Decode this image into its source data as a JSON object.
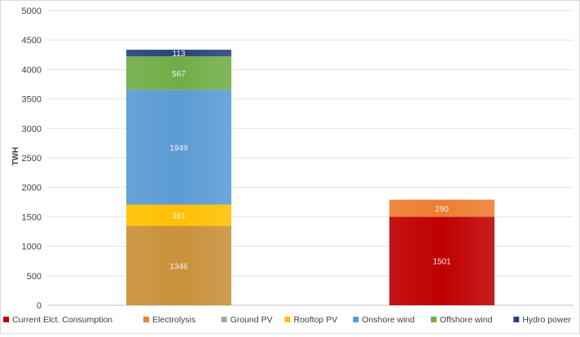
{
  "chart_data": {
    "type": "bar",
    "stacked": true,
    "ylabel": "TWH",
    "ylim": [
      0,
      5000
    ],
    "yticks": [
      0,
      500,
      1000,
      1500,
      2000,
      2500,
      3000,
      3500,
      4000,
      4500,
      5000
    ],
    "grid": true,
    "legend_position": "bottom",
    "categories": [
      "",
      ""
    ],
    "series": [
      {
        "name": "Current Elct. Consumption",
        "color": "#c00000",
        "values": [
          null,
          1501
        ]
      },
      {
        "name": "Electrolysis",
        "color": "#ed7d31",
        "values": [
          null,
          290
        ]
      },
      {
        "name": "Ground PV",
        "color": "#a5a5a5",
        "values": [
          1346,
          null
        ]
      },
      {
        "name": "Rooftop PV",
        "color": "#ffc000",
        "values": [
          361,
          null
        ]
      },
      {
        "name": "Onshore wind",
        "color": "#5b9bd5",
        "values": [
          1949,
          null
        ]
      },
      {
        "name": "Offshore wind",
        "color": "#70ad47",
        "values": [
          567,
          null
        ]
      },
      {
        "name": "Hydro power",
        "color": "#264478",
        "values": [
          113,
          null
        ]
      }
    ],
    "segment_colors": {
      "Ground PV": "#c9913a"
    }
  }
}
